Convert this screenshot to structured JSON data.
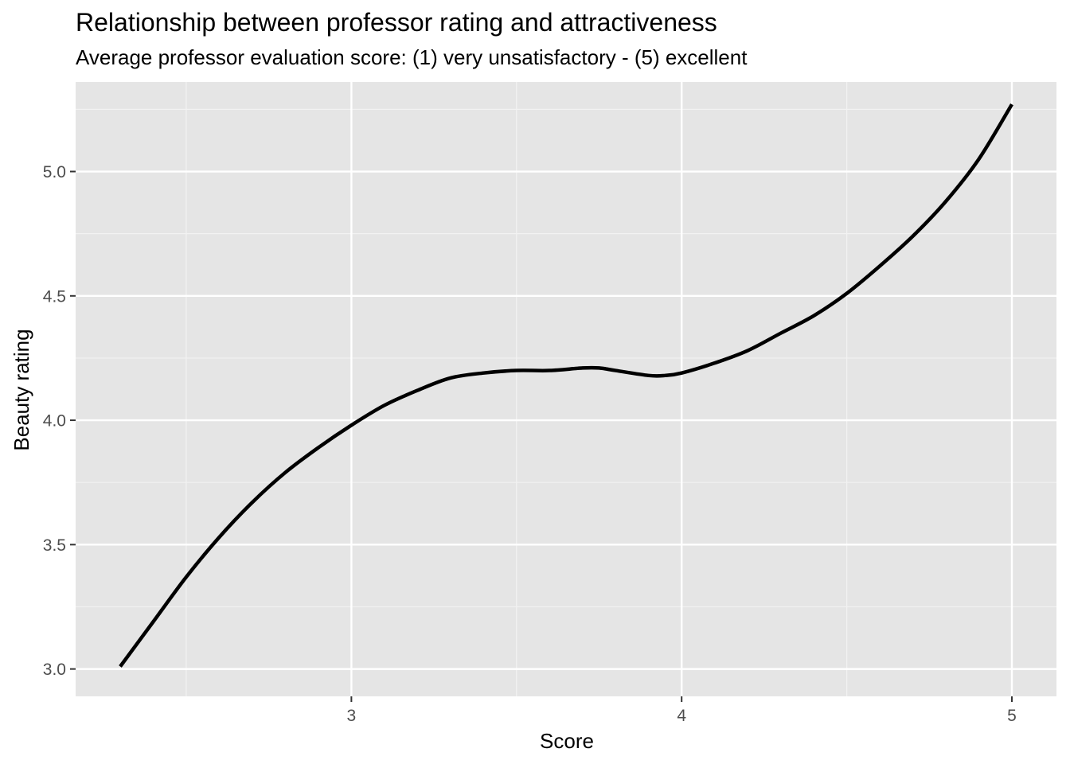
{
  "chart_data": {
    "type": "line",
    "title": "Relationship between professor rating and attractiveness",
    "subtitle": "Average professor evaluation score: (1) very unsatisfactory - (5) excellent",
    "xlabel": "Score",
    "ylabel": "Beauty rating",
    "xlim": [
      2.165,
      5.135
    ],
    "ylim": [
      2.89,
      5.36
    ],
    "x_ticks": [
      3,
      4,
      5
    ],
    "x_tick_labels": [
      "3",
      "4",
      "5"
    ],
    "y_ticks": [
      3.0,
      3.5,
      4.0,
      4.5,
      5.0
    ],
    "y_tick_labels": [
      "3.0",
      "3.5",
      "4.0",
      "4.5",
      "5.0"
    ],
    "grid": true,
    "series": [
      {
        "color": "#000000",
        "x": [
          2.3,
          2.4,
          2.5,
          2.6,
          2.7,
          2.8,
          2.9,
          3.0,
          3.1,
          3.2,
          3.3,
          3.4,
          3.5,
          3.6,
          3.7,
          3.75,
          3.8,
          3.9,
          3.95,
          4.0,
          4.1,
          4.2,
          4.3,
          4.4,
          4.5,
          4.6,
          4.7,
          4.8,
          4.9,
          5.0
        ],
        "y": [
          3.01,
          3.19,
          3.37,
          3.53,
          3.67,
          3.79,
          3.89,
          3.98,
          4.06,
          4.12,
          4.17,
          4.19,
          4.2,
          4.2,
          4.21,
          4.21,
          4.2,
          4.18,
          4.18,
          4.19,
          4.23,
          4.28,
          4.35,
          4.42,
          4.51,
          4.62,
          4.74,
          4.88,
          5.05,
          5.27
        ]
      }
    ]
  },
  "colors": {
    "panel_background": "#e5e5e5",
    "grid_major": "#ffffff",
    "grid_minor": "#f2f2f2",
    "line": "#000000",
    "tick_text": "#4d4d4d",
    "tick_mark": "#333333"
  }
}
